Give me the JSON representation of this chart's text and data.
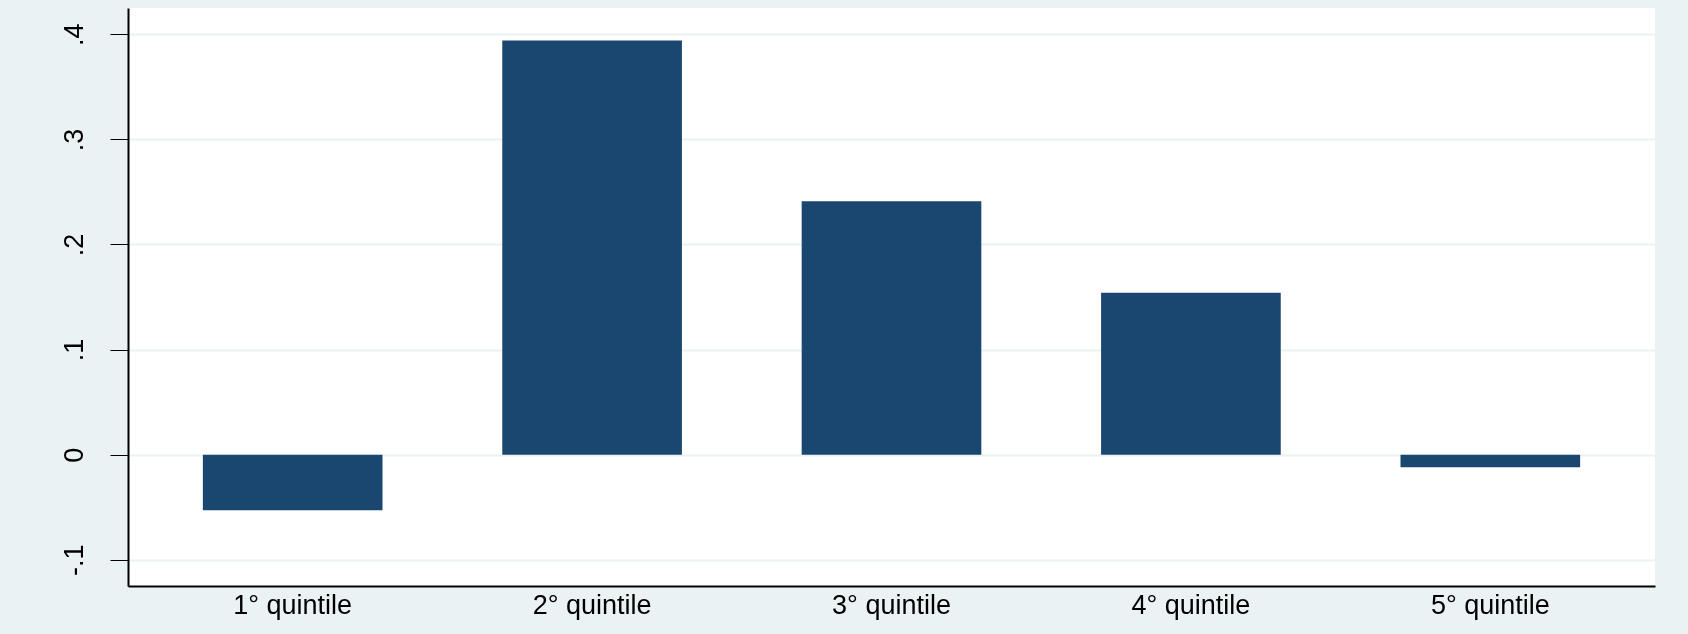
{
  "chart_data": {
    "type": "bar",
    "categories": [
      "1° quintile",
      "2° quintile",
      "3° quintile",
      "4° quintile",
      "5° quintile"
    ],
    "values": [
      -0.053,
      0.394,
      0.241,
      0.154,
      -0.012
    ],
    "color": "#1a476f",
    "ylim": [
      -0.125,
      0.425
    ],
    "yticks": [
      {
        "value": -0.1,
        "label": "-.1"
      },
      0,
      {
        "value": 0.1,
        "label": ".1"
      },
      {
        "value": 0.2,
        "label": ".2"
      },
      {
        "value": 0.3,
        "label": ".3"
      },
      {
        "value": 0.4,
        "label": ".4"
      }
    ],
    "grid": "y"
  }
}
